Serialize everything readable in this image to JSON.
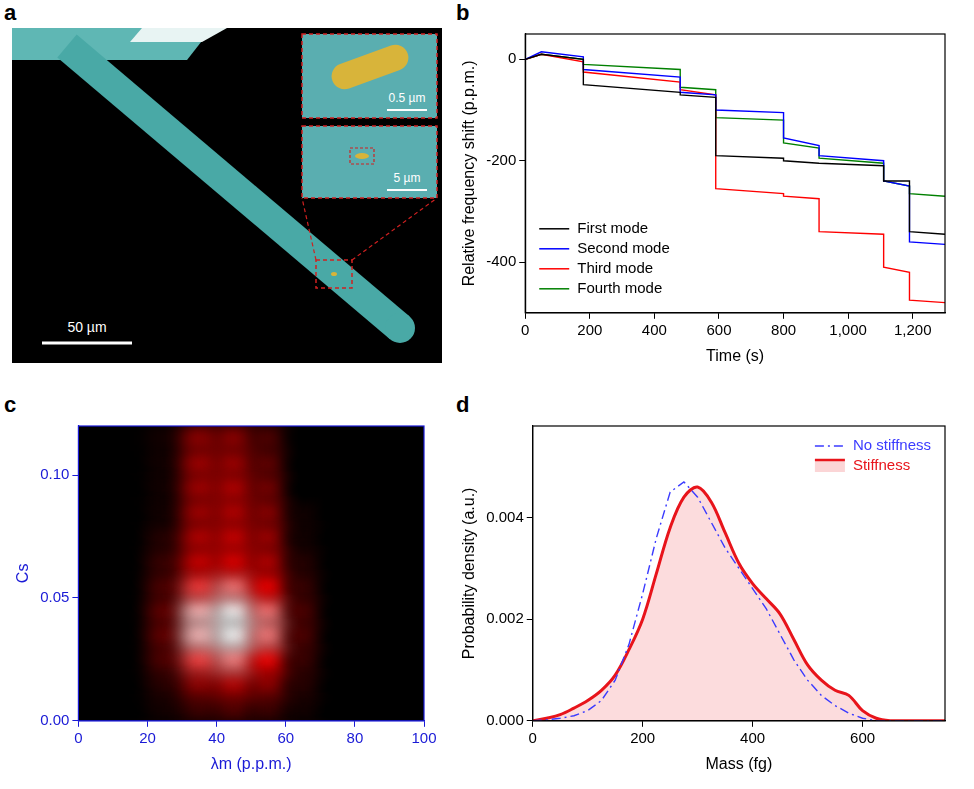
{
  "image_panel": {
    "panel": "a",
    "type": "image",
    "scale_bars": [
      "50 µm",
      "5 µm",
      "0.5 µm"
    ]
  },
  "chart_data": [
    {
      "panel": "b",
      "type": "line",
      "x_label": "Time (s)",
      "y_label": "Relative frequency shift (p.p.m.)",
      "x": [
        0,
        50,
        180,
        180,
        480,
        480,
        590,
        590,
        800,
        800,
        910,
        910,
        1110,
        1110,
        1190,
        1190,
        1300
      ],
      "series": [
        {
          "name": "First mode",
          "color": "#000000",
          "line_style": "solid",
          "values": [
            0,
            10,
            0,
            -50,
            -65,
            -70,
            -75,
            -190,
            -195,
            -200,
            -205,
            -205,
            -210,
            -240,
            -240,
            -340,
            -345
          ]
        },
        {
          "name": "Second mode",
          "color": "#0000ff",
          "line_style": "solid",
          "values": [
            0,
            15,
            5,
            -20,
            -35,
            -65,
            -70,
            -100,
            -105,
            -155,
            -170,
            -190,
            -200,
            -240,
            -250,
            -360,
            -365
          ]
        },
        {
          "name": "Third mode",
          "color": "#ff0000",
          "line_style": "solid",
          "values": [
            0,
            10,
            -5,
            -25,
            -45,
            -60,
            -70,
            -255,
            -265,
            -270,
            -275,
            -340,
            -345,
            -410,
            -420,
            -475,
            -480
          ]
        },
        {
          "name": "Fourth mode",
          "color": "#008000",
          "line_style": "solid",
          "values": [
            0,
            10,
            0,
            -10,
            -20,
            -55,
            -60,
            -115,
            -120,
            -165,
            -175,
            -195,
            -205,
            -240,
            -250,
            -265,
            -270
          ]
        }
      ],
      "xlim": [
        0,
        1300
      ],
      "xticks": [
        0,
        200,
        400,
        600,
        800,
        {
          "value": 1000,
          "label": "1,000"
        },
        {
          "value": 1200,
          "label": "1,200"
        }
      ],
      "ylim": [
        -500,
        50
      ],
      "yticks": [
        -400,
        -200,
        0
      ],
      "grid": false,
      "legend": "lower left"
    },
    {
      "panel": "c",
      "type": "heatmap",
      "x_label": "λm (p.p.m.)",
      "y_label": "Cs",
      "cell_x": [
        5,
        15,
        25,
        35,
        45,
        55,
        65,
        75,
        85,
        95
      ],
      "cell_y": [
        0.005,
        0.015,
        0.025,
        0.035,
        0.045,
        0.055,
        0.065,
        0.075,
        0.085,
        0.095,
        0.105,
        0.115
      ],
      "cells": [
        [
          0,
          0,
          0.05,
          0.15,
          0.2,
          0.15,
          0.05,
          0,
          0,
          0
        ],
        [
          0,
          0,
          0.1,
          0.35,
          0.45,
          0.35,
          0.1,
          0,
          0,
          0
        ],
        [
          0,
          0,
          0.2,
          0.7,
          0.8,
          0.6,
          0.15,
          0,
          0,
          0
        ],
        [
          0,
          0,
          0.25,
          0.9,
          1.0,
          0.8,
          0.2,
          0,
          0,
          0
        ],
        [
          0,
          0,
          0.25,
          0.9,
          1.0,
          0.8,
          0.2,
          0,
          0,
          0
        ],
        [
          0,
          0,
          0.2,
          0.7,
          0.8,
          0.6,
          0.15,
          0,
          0,
          0
        ],
        [
          0,
          0,
          0.15,
          0.5,
          0.55,
          0.45,
          0.1,
          0,
          0,
          0
        ],
        [
          0,
          0,
          0.1,
          0.45,
          0.5,
          0.4,
          0.05,
          0,
          0,
          0
        ],
        [
          0,
          0,
          0.05,
          0.4,
          0.45,
          0.35,
          0.05,
          0,
          0,
          0
        ],
        [
          0,
          0,
          0.05,
          0.4,
          0.45,
          0.3,
          0,
          0,
          0,
          0
        ],
        [
          0,
          0,
          0.05,
          0.4,
          0.4,
          0.25,
          0,
          0,
          0,
          0
        ],
        [
          0,
          0,
          0.05,
          0.35,
          0.35,
          0.2,
          0,
          0,
          0,
          0
        ]
      ],
      "xlim": [
        0,
        100
      ],
      "xticks": [
        0,
        20,
        40,
        60,
        80,
        100
      ],
      "ylim": [
        0,
        0.12
      ],
      "yticks": [
        {
          "value": 0,
          "label": "0.00"
        },
        {
          "value": 0.05,
          "label": "0.05"
        },
        {
          "value": 0.1,
          "label": "0.10"
        }
      ],
      "grid": false
    },
    {
      "panel": "d",
      "type": "line",
      "x_label": "Mass (fg)",
      "y_label": "Probability density (a.u.)",
      "x": [
        0,
        25,
        50,
        75,
        100,
        125,
        150,
        175,
        200,
        225,
        250,
        275,
        300,
        325,
        350,
        375,
        400,
        425,
        450,
        475,
        500,
        525,
        550,
        575,
        600,
        625,
        650,
        675,
        700,
        725,
        750
      ],
      "series": [
        {
          "name": "No stiffness",
          "color": "#3b3bff",
          "type": "line",
          "line_style": "dashdot",
          "values": [
            0,
            2e-05,
            5e-05,
            0.0001,
            0.0002,
            0.0004,
            0.0008,
            0.0015,
            0.0025,
            0.0036,
            0.0045,
            0.0047,
            0.0044,
            0.0039,
            0.0034,
            0.003,
            0.0026,
            0.0022,
            0.0017,
            0.0012,
            0.0008,
            0.0005,
            0.0003,
            0.00015,
            5e-05,
            0,
            0,
            0,
            0,
            0,
            0
          ]
        },
        {
          "name": "Stiffness",
          "color": "#e8141b",
          "type": "area",
          "line_style": "solid",
          "values": [
            0,
            5e-05,
            0.00012,
            0.00025,
            0.0004,
            0.0006,
            0.0009,
            0.0014,
            0.002,
            0.0029,
            0.0038,
            0.0044,
            0.0046,
            0.0043,
            0.0037,
            0.0031,
            0.0027,
            0.0024,
            0.0021,
            0.0016,
            0.0011,
            0.0008,
            0.0006,
            0.0005,
            0.0002,
            5e-05,
            0,
            0,
            0,
            0,
            0
          ]
        }
      ],
      "xlim": [
        0,
        750
      ],
      "xticks": [
        0,
        200,
        400,
        600
      ],
      "ylim": [
        0,
        0.0058
      ],
      "yticks": [
        {
          "value": 0,
          "label": "0.000"
        },
        {
          "value": 0.002,
          "label": "0.002"
        },
        {
          "value": 0.004,
          "label": "0.004"
        }
      ],
      "grid": false,
      "legend": "upper right"
    }
  ]
}
